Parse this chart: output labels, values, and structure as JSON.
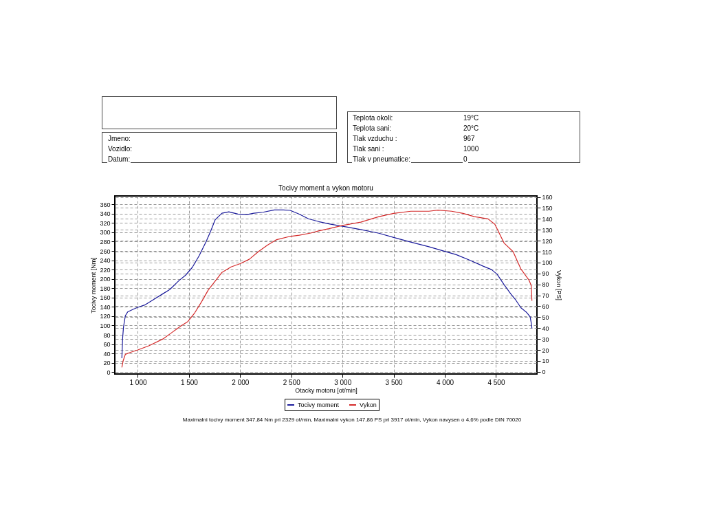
{
  "chart_data": {
    "type": "line",
    "title": "Tocivy moment a vykon motoru",
    "xlabel": "Otacky motoru [ot/min]",
    "ylabel": "Tocivy moment [Nm]",
    "y2label": "Vykon [PS]",
    "xlim": [
      775,
      4900
    ],
    "xticks": [
      {
        "value": 1000,
        "label": "1 000"
      },
      {
        "value": 1500,
        "label": "1 500"
      },
      {
        "value": 2000,
        "label": "2 000"
      },
      {
        "value": 2500,
        "label": "2 500"
      },
      {
        "value": 3000,
        "label": "3 000"
      },
      {
        "value": 3500,
        "label": "3 500"
      },
      {
        "value": 4000,
        "label": "4 000"
      },
      {
        "value": 4500,
        "label": "4 500"
      }
    ],
    "ylim": [
      -4,
      378
    ],
    "yticks": [
      0,
      20,
      40,
      60,
      80,
      100,
      120,
      140,
      160,
      180,
      200,
      220,
      240,
      260,
      280,
      300,
      320,
      340,
      360
    ],
    "y2lim": [
      -2,
      161
    ],
    "y2ticks": [
      0,
      10,
      20,
      30,
      40,
      50,
      60,
      70,
      80,
      90,
      100,
      110,
      120,
      130,
      140,
      150,
      160
    ],
    "grid": true,
    "legend": "bottom",
    "series": [
      {
        "name": "Tocivy moment",
        "color": "#1a1a9a",
        "x": [
          844,
          851,
          860,
          878,
          900,
          956,
          1000,
          1067,
          1156,
          1244,
          1311,
          1400,
          1467,
          1533,
          1600,
          1667,
          1711,
          1756,
          1822,
          1889,
          1978,
          2067,
          2133,
          2222,
          2333,
          2422,
          2489,
          2578,
          2667,
          2767,
          2867,
          3000,
          3178,
          3356,
          3500,
          3667,
          3844,
          4000,
          4111,
          4244,
          4378,
          4456,
          4511,
          4578,
          4644,
          4689,
          4744,
          4800,
          4833,
          4844,
          4851
        ],
        "values": [
          30,
          72,
          97,
          121,
          129,
          135,
          139,
          144,
          156,
          168,
          177,
          196,
          208,
          225,
          250,
          280,
          302,
          327,
          341,
          344,
          339,
          338,
          341,
          343,
          348,
          348,
          347,
          339,
          329,
          323,
          318,
          313,
          306,
          298,
          289,
          279,
          269,
          259,
          252,
          240,
          227,
          220,
          210,
          188,
          168,
          156,
          138,
          128,
          119,
          106,
          94
        ]
      },
      {
        "name": "Vykon",
        "color": "#d42a2a",
        "axis": "y2",
        "x": [
          844,
          856,
          878,
          933,
          1000,
          1111,
          1244,
          1333,
          1422,
          1489,
          1556,
          1622,
          1689,
          1756,
          1822,
          1911,
          2000,
          2089,
          2178,
          2267,
          2356,
          2489,
          2578,
          2689,
          2767,
          2867,
          3000,
          3178,
          3356,
          3500,
          3667,
          3844,
          3933,
          4067,
          4178,
          4289,
          4422,
          4489,
          4578,
          4667,
          4744,
          4822,
          4844,
          4851
        ],
        "values": [
          4,
          10,
          16,
          18,
          20,
          24,
          30,
          36,
          42,
          46,
          54,
          64,
          75,
          83,
          91,
          96,
          99,
          103,
          110,
          116,
          121,
          124,
          125,
          127,
          129,
          131,
          134,
          137,
          142,
          145,
          147,
          147,
          148,
          147,
          145,
          142,
          140,
          135,
          118,
          110,
          94,
          84,
          79,
          65
        ]
      }
    ],
    "annotations": [
      "Jmeno:",
      "Vozidlo:",
      "Datum:",
      "Teplota okoli:",
      "19°C",
      "Teplota sani:",
      "20°C",
      "Tlak vzduchu :",
      "967",
      "Tlak sani :",
      "1000",
      "Tlak v pneumatice:",
      "0",
      "Maximalni tocivy moment 347,84 Nm pri 2329 ot/min,  Maximalni vykon 147,86 PS pri 3917 ot/min,  Vykon navysen o 4,6% podle DIN 70020"
    ]
  }
}
